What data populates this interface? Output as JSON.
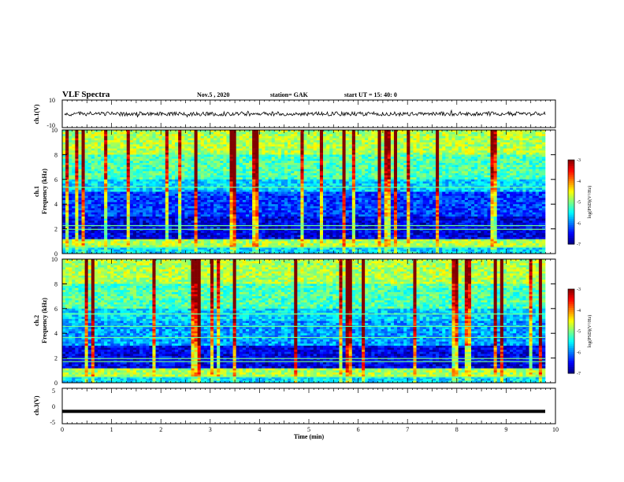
{
  "header": {
    "title": "VLF Spectra",
    "date": "Nov.5 , 2020",
    "station": "station= GAK",
    "start": "start UT = 15: 40: 0"
  },
  "chart_data": [
    {
      "type": "line",
      "name": "ch1-waveform",
      "ylabel": "ch.1(V)",
      "ylim": [
        -10,
        10
      ],
      "yticks": [
        "10",
        "-10"
      ],
      "description_values": "noisy trace centred near 0 V, amplitude about ±2 V"
    },
    {
      "type": "heatmap",
      "name": "ch1-spectrogram",
      "ylabel": "ch.1",
      "ylabel2": "Frequency (kHz)",
      "ylim": [
        0,
        10
      ],
      "yticks": [
        "0",
        "2",
        "4",
        "6",
        "8",
        "10"
      ],
      "colorbar": {
        "label": "log(PSD)(V²/Hz)",
        "range": [
          -7,
          -3
        ],
        "ticks": [
          "-3",
          "-4",
          "-5",
          "-6",
          "-7"
        ]
      }
    },
    {
      "type": "heatmap",
      "name": "ch2-spectrogram",
      "ylabel": "ch.2",
      "ylabel2": "Frequency (kHz)",
      "ylim": [
        0,
        10
      ],
      "yticks": [
        "0",
        "2",
        "4",
        "6",
        "8",
        "10"
      ],
      "colorbar": {
        "label": "log(PSD)(V²/Hz)",
        "range": [
          -7,
          -3
        ],
        "ticks": [
          "-3",
          "-4",
          "-5",
          "-6",
          "-7"
        ]
      }
    },
    {
      "type": "line",
      "name": "ch3-waveform",
      "ylabel": "ch.3(V)",
      "ylim": [
        -5,
        5
      ],
      "yticks": [
        "5",
        "0",
        "-5"
      ],
      "level": -1.5
    }
  ],
  "x_axis": {
    "label": "Time (min)",
    "range": [
      0,
      10
    ],
    "ticks": [
      "0",
      "1",
      "2",
      "3",
      "4",
      "5",
      "6",
      "7",
      "8",
      "9",
      "10"
    ]
  }
}
